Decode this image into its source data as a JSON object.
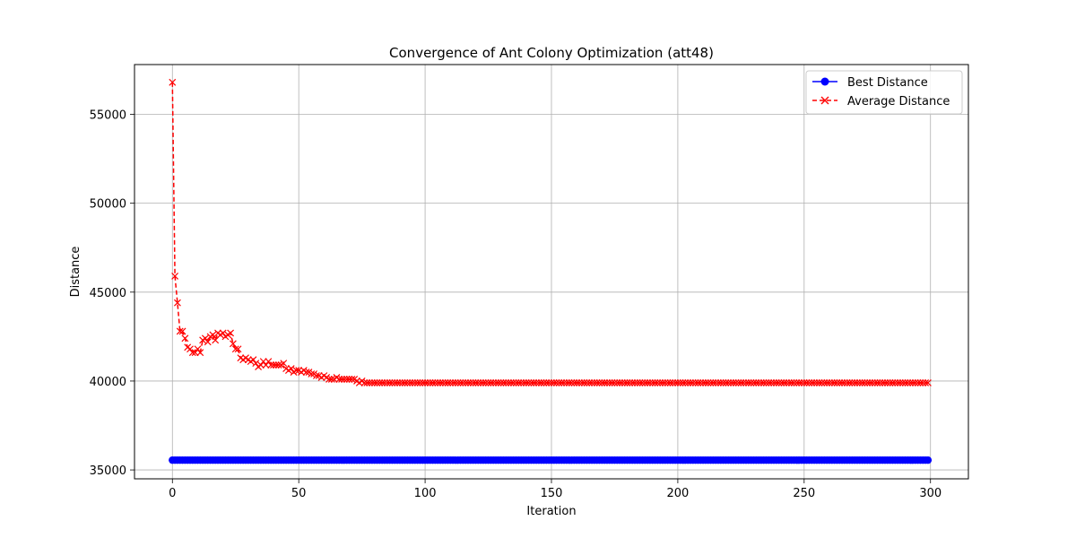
{
  "chart_data": {
    "type": "line",
    "title": "Convergence of Ant Colony Optimization (att48)",
    "xlabel": "Iteration",
    "ylabel": "Distance",
    "xlim": [
      -15,
      315
    ],
    "ylim": [
      34500,
      57800
    ],
    "xticks": [
      0,
      50,
      100,
      150,
      200,
      250,
      300
    ],
    "yticks": [
      35000,
      40000,
      45000,
      50000,
      55000
    ],
    "grid": true,
    "legend_position": "top-right",
    "series": [
      {
        "name": "Best Distance",
        "color": "#0000ff",
        "linestyle": "solid",
        "marker": "circle",
        "constant_value": 35550,
        "iterations": [
          0,
          299
        ]
      },
      {
        "name": "Average Distance",
        "color": "#ff0000",
        "linestyle": "dashed",
        "marker": "x",
        "values": [
          56800,
          45900,
          44400,
          42800,
          42800,
          42400,
          41900,
          41800,
          41600,
          41600,
          41800,
          41600,
          42300,
          42400,
          42200,
          42500,
          42600,
          42300,
          42700,
          42600,
          42700,
          42500,
          42600,
          42700,
          42100,
          41800,
          41800,
          41300,
          41200,
          41300,
          41200,
          41100,
          41200,
          41000,
          40800,
          40900,
          41100,
          40900,
          41100,
          40900,
          40900,
          40900,
          40900,
          40900,
          41000,
          40700,
          40600,
          40700,
          40500,
          40600,
          40600,
          40500,
          40600,
          40500,
          40500,
          40400,
          40400,
          40300,
          40300,
          40200,
          40300,
          40200,
          40100,
          40100,
          40100,
          40200,
          40100,
          40100,
          40100,
          40100,
          40100,
          40100,
          40100,
          40000,
          39900,
          40000,
          39900,
          39900,
          39900,
          39900,
          39900,
          39900,
          39900,
          39900,
          39900,
          39900,
          39900,
          39900,
          39900,
          39900
        ],
        "tail_value": 39900,
        "iterations": [
          0,
          299
        ]
      }
    ]
  }
}
